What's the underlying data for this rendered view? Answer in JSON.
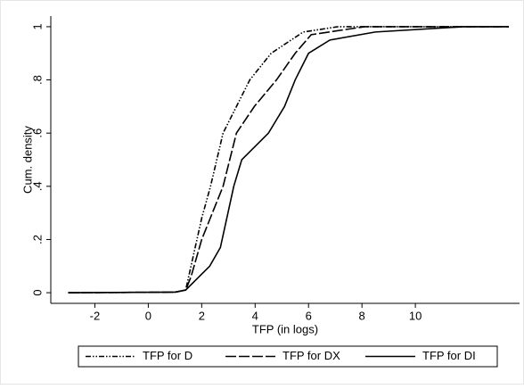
{
  "chart_data": {
    "type": "line",
    "x_label": "TFP (in logs)",
    "y_label": "Cum. density",
    "xlim": [
      -3.65,
      13.9
    ],
    "ylim": [
      -0.04,
      1.04
    ],
    "xticks": [
      -2,
      0,
      2,
      4,
      6,
      8,
      10
    ],
    "yticks": [
      0,
      {
        "value": 0.2,
        "label": ".2"
      },
      {
        "value": 0.4,
        "label": ".4"
      },
      {
        "value": 0.6,
        "label": ".6"
      },
      {
        "value": 0.8,
        "label": ".8"
      },
      1
    ],
    "grid": false,
    "legend": "bottom",
    "series": [
      {
        "name": "TFP for D",
        "color": "#000000",
        "linestyle": "dash-dot",
        "x": [
          -3,
          1,
          1.4,
          1.6,
          2,
          2.33,
          2.8,
          3.8,
          4.6,
          5.8,
          7.1,
          13.5
        ],
        "values": [
          0,
          0.002,
          0.01,
          0.1,
          0.28,
          0.4,
          0.6,
          0.8,
          0.9,
          0.98,
          1,
          1
        ]
      },
      {
        "name": "TFP for DX",
        "color": "#000000",
        "linestyle": "long-dash",
        "x": [
          -3,
          1,
          1.4,
          1.6,
          2,
          2.8,
          3.3,
          3.97,
          4.8,
          5.5,
          6.1,
          8.1,
          13.5
        ],
        "values": [
          0,
          0.002,
          0.01,
          0.06,
          0.2,
          0.4,
          0.6,
          0.7,
          0.8,
          0.9,
          0.97,
          1,
          1
        ]
      },
      {
        "name": "TFP for DI",
        "color": "#000000",
        "linestyle": "solid",
        "x": [
          -3,
          1,
          1.4,
          1.8,
          2.3,
          2.7,
          3.2,
          3.5,
          4.5,
          5.1,
          5.5,
          6,
          6.8,
          8.5,
          11.8,
          13.5
        ],
        "values": [
          0,
          0.002,
          0.01,
          0.05,
          0.1,
          0.17,
          0.4,
          0.5,
          0.6,
          0.7,
          0.8,
          0.9,
          0.95,
          0.98,
          1,
          1
        ]
      }
    ]
  }
}
